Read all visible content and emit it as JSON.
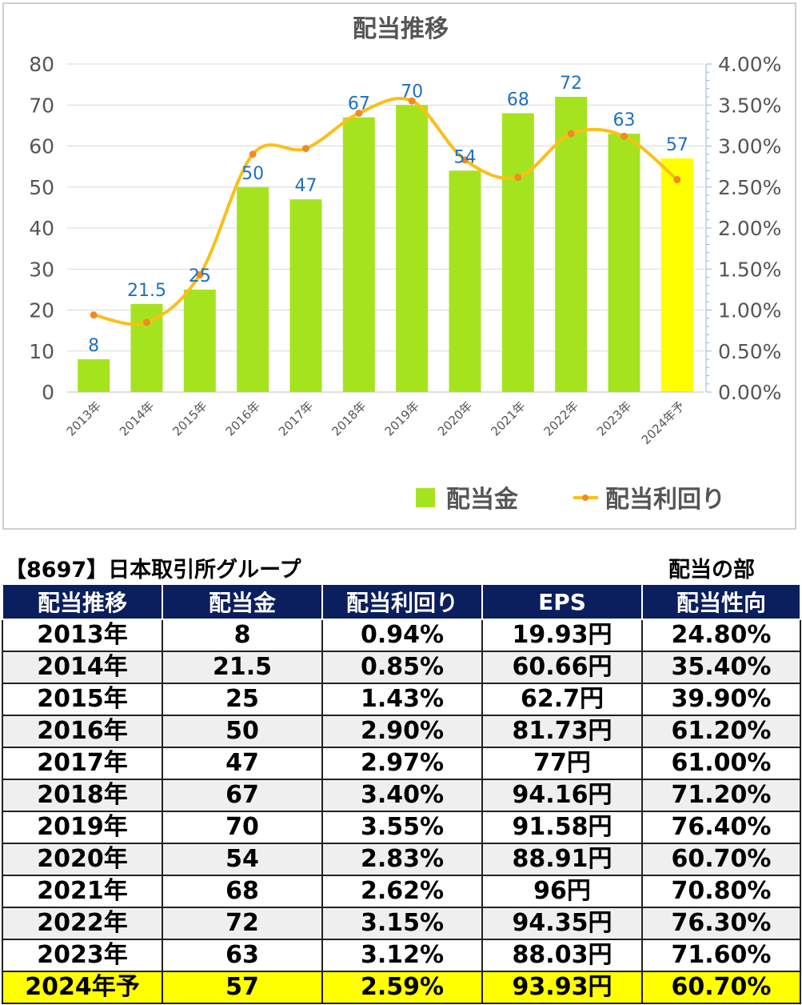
{
  "chart_data": {
    "type": "bar",
    "title": "配当推移",
    "categories": [
      "2013年",
      "2014年",
      "2015年",
      "2016年",
      "2017年",
      "2018年",
      "2019年",
      "2020年",
      "2021年",
      "2022年",
      "2023年",
      "2024年予"
    ],
    "series": [
      {
        "name": "配当金",
        "type": "bar",
        "axis": "left",
        "values": [
          8,
          21.5,
          25,
          50,
          47,
          67,
          70,
          54,
          68,
          72,
          63,
          57
        ],
        "data_labels": [
          "8",
          "21.5",
          "25",
          "50",
          "47",
          "67",
          "70",
          "54",
          "68",
          "72",
          "63",
          "57"
        ]
      },
      {
        "name": "配当利回り",
        "type": "line",
        "axis": "right",
        "values": [
          0.94,
          0.85,
          1.43,
          2.9,
          2.97,
          3.4,
          3.55,
          2.83,
          2.62,
          3.15,
          3.12,
          2.59
        ]
      }
    ],
    "y_left": {
      "min": 0,
      "max": 80,
      "ticks": [
        "0",
        "10",
        "20",
        "30",
        "40",
        "50",
        "60",
        "70",
        "80"
      ]
    },
    "y_right": {
      "min": 0,
      "max": 4,
      "ticks": [
        "0.00%",
        "0.50%",
        "1.00%",
        "1.50%",
        "2.00%",
        "2.50%",
        "3.00%",
        "3.50%",
        "4.00%"
      ]
    },
    "grid": true,
    "legend_position": "bottom-right",
    "colors": {
      "bar": "#a6e31f",
      "bar_forecast": "#ffff00",
      "line": "#fbbf18",
      "marker": "#f08a24",
      "data_label": "#1f6fc0",
      "axis_text": "#555555"
    }
  },
  "table": {
    "caption_left": "【8697】日本取引所グループ",
    "caption_right": "配当の部",
    "headers": [
      "配当推移",
      "配当金",
      "配当利回り",
      "EPS",
      "配当性向"
    ],
    "rows": [
      [
        "2013年",
        "8",
        "0.94%",
        "19.93円",
        "24.80%"
      ],
      [
        "2014年",
        "21.5",
        "0.85%",
        "60.66円",
        "35.40%"
      ],
      [
        "2015年",
        "25",
        "1.43%",
        "62.7円",
        "39.90%"
      ],
      [
        "2016年",
        "50",
        "2.90%",
        "81.73円",
        "61.20%"
      ],
      [
        "2017年",
        "47",
        "2.97%",
        "77円",
        "61.00%"
      ],
      [
        "2018年",
        "67",
        "3.40%",
        "94.16円",
        "71.20%"
      ],
      [
        "2019年",
        "70",
        "3.55%",
        "91.58円",
        "76.40%"
      ],
      [
        "2020年",
        "54",
        "2.83%",
        "88.91円",
        "60.70%"
      ],
      [
        "2021年",
        "68",
        "2.62%",
        "96円",
        "70.80%"
      ],
      [
        "2022年",
        "72",
        "3.15%",
        "94.35円",
        "76.30%"
      ],
      [
        "2023年",
        "63",
        "3.12%",
        "88.03円",
        "71.60%"
      ],
      [
        "2024年予",
        "57",
        "2.59%",
        "93.93円",
        "60.70%"
      ]
    ]
  }
}
